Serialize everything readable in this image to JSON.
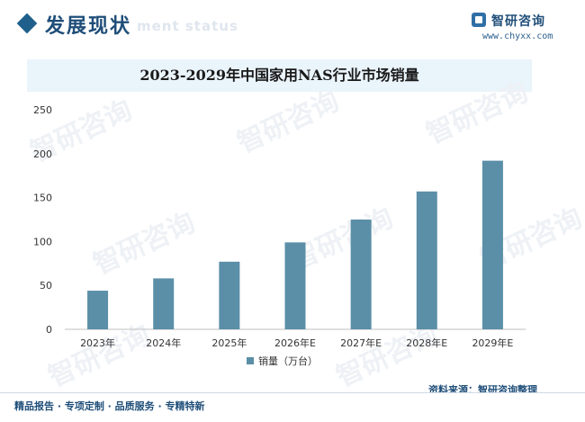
{
  "header": {
    "section_title": "发展现状",
    "section_subtitle": "ment status",
    "logo_name": "智研咨询",
    "logo_url": "www.chyxx.com"
  },
  "watermark_text": "智研咨询",
  "chart_data": {
    "type": "bar",
    "title": "2023-2029年中国家用NAS行业市场销量",
    "categories": [
      "2023年",
      "2024年",
      "2025年",
      "2026年E",
      "2027年E",
      "2028年E",
      "2029年E"
    ],
    "series": [
      {
        "name": "销量（万台）",
        "values": [
          44,
          58,
          77,
          99,
          125,
          157,
          192
        ],
        "color": "#5b8fa8"
      }
    ],
    "yticks": [
      "0",
      "50",
      "100",
      "150",
      "200",
      "250"
    ],
    "ylim": [
      0,
      250
    ],
    "grid": false,
    "legend_position": "bottom"
  },
  "source_text": "资料来源：智研咨询整理",
  "footer_text": "精品报告 · 专项定制 · 品质服务 · 专精特新"
}
